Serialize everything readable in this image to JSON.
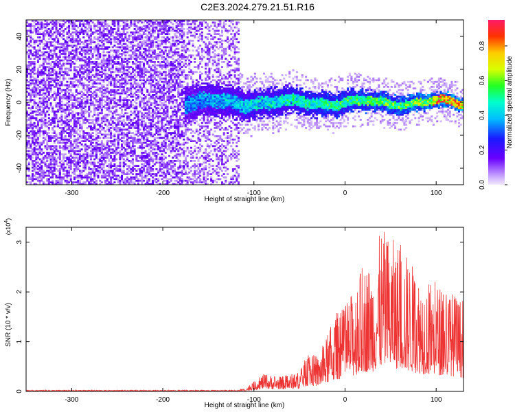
{
  "title": "C2E3.2024.279.21.51.R16",
  "chart_data": [
    {
      "type": "heatmap",
      "xlabel": "Height of straight line (km)",
      "ylabel": "Frequency (Hz)",
      "xlim": [
        -350,
        130
      ],
      "ylim": [
        -50,
        50
      ],
      "xticks": [
        -300,
        -200,
        -100,
        0,
        100
      ],
      "yticks": [
        -40,
        -20,
        0,
        20,
        40
      ],
      "colorbar": {
        "label": "Normalized spectral amplitude",
        "range": [
          0,
          0.95
        ],
        "ticks": [
          0.0,
          0.2,
          0.4,
          0.6,
          0.8
        ]
      },
      "features": {
        "noise_region_x": [
          -350,
          -115
        ],
        "signal_band_x": [
          -175,
          130
        ],
        "signal_center_hz": 0,
        "signal_halfwidth_hz": [
          10,
          4
        ],
        "peak_amplitude_region_x": [
          95,
          130
        ]
      }
    },
    {
      "type": "line",
      "xlabel": "Height of straight line (km)",
      "ylabel": "SNR (10 * v/v)",
      "y_multiplier": "(x10",
      "y_multiplier_exp": "4",
      "xlim": [
        -350,
        130
      ],
      "ylim": [
        0,
        3.3
      ],
      "xticks": [
        -300,
        -200,
        -100,
        0,
        100
      ],
      "yticks": [
        0,
        1,
        2,
        3
      ],
      "color": "#ee3333",
      "envelope": {
        "x": [
          -350,
          -110,
          -100,
          -90,
          -70,
          -50,
          -40,
          -30,
          -20,
          -10,
          0,
          10,
          20,
          30,
          40,
          50,
          60,
          70,
          80,
          90,
          100,
          110,
          120,
          130
        ],
        "y_max": [
          0.02,
          0.05,
          0.2,
          0.35,
          0.3,
          0.4,
          0.8,
          0.7,
          1.1,
          1.6,
          1.7,
          2.1,
          2.6,
          2.6,
          3.3,
          3.1,
          3.0,
          2.7,
          2.4,
          2.3,
          2.2,
          2.1,
          2.0,
          1.8
        ]
      }
    }
  ]
}
